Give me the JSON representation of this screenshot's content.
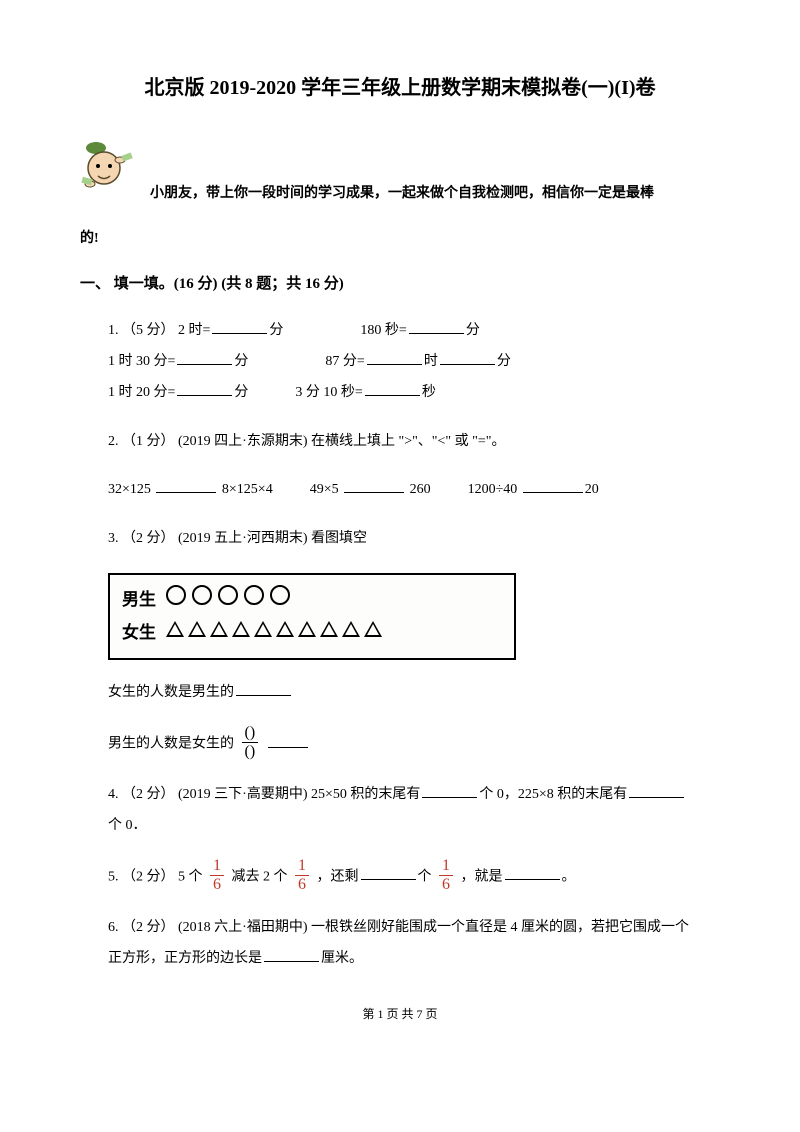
{
  "title": "北京版 2019-2020 学年三年级上册数学期末模拟卷(一)(I)卷",
  "intro_line": "小朋友，带上你一段时间的学习成果，一起来做个自我检测吧，相信你一定是最棒",
  "intro_tail": "的!",
  "section1_header": "一、 填一填。(16 分)  (共 8 题；共 16 分)",
  "q1": {
    "lead": "1.  （5 分） 2 时=",
    "u1": "分",
    "p2a": "180 秒=",
    "u2": "分",
    "l2a": "1 时 30 分=",
    "l2u1": "分",
    "l2b": "87 分=",
    "l2u2": "时",
    "l2u3": "分",
    "l3a": "1 时 20 分=",
    "l3u1": "分",
    "l3b": "3 分 10 秒=",
    "l3u2": "秒"
  },
  "q2": {
    "lead": "2.  （1 分） (2019 四上·东源期末) 在横线上填上 \">\"、\"<\" 或 \"=\"。",
    "a": "32×125",
    "b": "8×125×4",
    "c": "49×5",
    "d": "260",
    "e": "1200÷40",
    "f": "20"
  },
  "q3": {
    "lead": "3.  （2 分） (2019 五上·河西期末) 看图填空",
    "boy_label": "男生",
    "girl_label": "女生",
    "boy_count": 5,
    "girl_count": 10,
    "sub1": "女生的人数是男生的",
    "sub2_pre": "男生的人数是女生的",
    "frac_n": "()",
    "frac_d": "()"
  },
  "q4": {
    "lead": "4.  （2 分） (2019 三下·高要期中)  25×50 积的末尾有",
    "mid": "个 0，225×8 积的末尾有",
    "tail": "个 0．"
  },
  "q5": {
    "lead": "5.  （2 分） 5 个",
    "f1n": "1",
    "f1d": "6",
    "t1": " 减去 2 个 ",
    "f2n": "1",
    "f2d": "6",
    "t2": " ，还剩",
    "t3": "个 ",
    "f3n": "1",
    "f3d": "6",
    "t4": " ，就是",
    "t5": "。"
  },
  "q6": {
    "lead": "6.  （2 分） (2018 六上·福田期中)  一根铁丝刚好能围成一个直径是 4 厘米的圆，若把它围成一个",
    "line2": "正方形，正方形的边长是",
    "tail": "厘米。"
  },
  "footer": "第 1 页 共 7 页",
  "colors": {
    "text": "#000000",
    "background": "#ffffff",
    "accent_red": "#c0392b",
    "mascot_green": "#5a8a3a",
    "mascot_skin": "#f5d6b3"
  }
}
